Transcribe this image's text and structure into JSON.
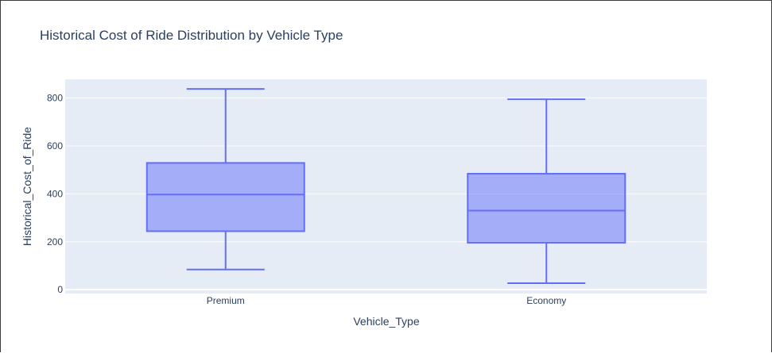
{
  "chart_data": {
    "type": "box",
    "title": "Historical Cost of Ride Distribution by Vehicle Type",
    "xlabel": "Vehicle_Type",
    "ylabel": "Historical_Cost_of_Ride",
    "categories": [
      "Premium",
      "Economy"
    ],
    "y_ticks": [
      0,
      200,
      400,
      600,
      800
    ],
    "ylim": [
      -16,
      878
    ],
    "grid": true,
    "legend": "none",
    "boxes": [
      {
        "category": "Premium",
        "min": 84,
        "q1": 244,
        "median": 397,
        "q3": 529,
        "max": 838
      },
      {
        "category": "Economy",
        "min": 27,
        "q1": 196,
        "median": 330,
        "q3": 484,
        "max": 795
      }
    ],
    "colors": {
      "box_line": "#636efa",
      "box_fill": "rgba(99,110,250,0.5)",
      "plot_bg": "#e5ecf6",
      "grid": "#ffffff",
      "text": "#2a3f5f"
    }
  }
}
